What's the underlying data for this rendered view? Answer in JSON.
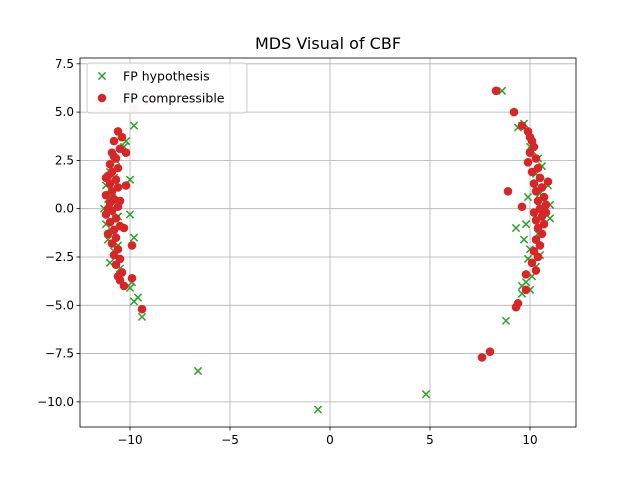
{
  "chart_data": {
    "type": "scatter",
    "title": "MDS Visual of CBF",
    "xlabel": "",
    "ylabel": "",
    "xlim": [
      -12.5,
      12.3
    ],
    "ylim": [
      -11.3,
      7.8
    ],
    "xticks": [
      -10,
      -5,
      0,
      5,
      10
    ],
    "yticks": [
      -10.0,
      -7.5,
      -5.0,
      -2.5,
      0.0,
      2.5,
      5.0,
      7.5
    ],
    "xtick_labels": [
      "−10",
      "−5",
      "0",
      "5",
      "10"
    ],
    "ytick_labels": [
      "−10.0",
      "−7.5",
      "−5.0",
      "−2.5",
      "0.0",
      "2.5",
      "5.0",
      "7.5"
    ],
    "grid": true,
    "legend_position": "top-left",
    "series": [
      {
        "name": "FP hypothesis",
        "marker": "x",
        "color": "#2ca02c",
        "points": [
          [
            -11.0,
            1.9
          ],
          [
            -10.8,
            1.6
          ],
          [
            -11.2,
            1.2
          ],
          [
            -10.9,
            0.9
          ],
          [
            -11.1,
            0.5
          ],
          [
            -10.7,
            0.2
          ],
          [
            -11.0,
            -0.2
          ],
          [
            -10.6,
            -0.4
          ],
          [
            -11.2,
            -0.8
          ],
          [
            -10.9,
            -1.2
          ],
          [
            -11.1,
            -1.6
          ],
          [
            -10.6,
            -1.9
          ],
          [
            -10.8,
            -2.2
          ],
          [
            -11.0,
            -2.8
          ],
          [
            -10.5,
            -3.1
          ],
          [
            -10.0,
            1.5
          ],
          [
            -10.0,
            -0.3
          ],
          [
            -10.3,
            3.2
          ],
          [
            -10.2,
            3.5
          ],
          [
            -9.8,
            4.3
          ],
          [
            -10.0,
            -4.1
          ],
          [
            -9.8,
            -4.8
          ],
          [
            -9.6,
            -4.6
          ],
          [
            -9.4,
            -5.6
          ],
          [
            -9.8,
            -1.5
          ],
          [
            -9.9,
            -3.8
          ],
          [
            -11.3,
            0.0
          ],
          [
            -10.7,
            2.5
          ],
          [
            -6.6,
            -8.4
          ],
          [
            -0.6,
            -10.4
          ],
          [
            4.8,
            -9.6
          ],
          [
            8.6,
            6.1
          ],
          [
            9.4,
            4.2
          ],
          [
            9.7,
            4.4
          ],
          [
            9.6,
            4.3
          ],
          [
            10.0,
            3.2
          ],
          [
            10.1,
            3.0
          ],
          [
            10.4,
            2.6
          ],
          [
            10.6,
            2.2
          ],
          [
            10.3,
            1.8
          ],
          [
            10.9,
            1.2
          ],
          [
            10.5,
            0.8
          ],
          [
            9.9,
            0.6
          ],
          [
            11.0,
            0.2
          ],
          [
            10.6,
            -0.3
          ],
          [
            11.0,
            -0.5
          ],
          [
            9.8,
            -0.8
          ],
          [
            9.3,
            -1.0
          ],
          [
            10.4,
            -1.3
          ],
          [
            9.7,
            -1.6
          ],
          [
            10.0,
            -2.1
          ],
          [
            10.5,
            -2.4
          ],
          [
            9.9,
            -2.6
          ],
          [
            10.3,
            -3.0
          ],
          [
            10.1,
            -3.5
          ],
          [
            9.8,
            -3.8
          ],
          [
            9.6,
            -4.0
          ],
          [
            10.0,
            -4.2
          ],
          [
            8.8,
            -5.8
          ],
          [
            9.6,
            -4.4
          ]
        ]
      },
      {
        "name": "FP compressible",
        "marker": "o",
        "color": "#d62728",
        "points": [
          [
            -10.6,
            4.0
          ],
          [
            -10.4,
            3.7
          ],
          [
            -10.8,
            3.5
          ],
          [
            -10.5,
            3.1
          ],
          [
            -10.9,
            2.9
          ],
          [
            -10.7,
            2.6
          ],
          [
            -11.0,
            2.3
          ],
          [
            -10.6,
            2.1
          ],
          [
            -10.9,
            1.9
          ],
          [
            -11.1,
            1.7
          ],
          [
            -10.7,
            1.5
          ],
          [
            -11.0,
            1.3
          ],
          [
            -10.6,
            1.1
          ],
          [
            -10.9,
            0.9
          ],
          [
            -11.2,
            0.7
          ],
          [
            -10.8,
            0.5
          ],
          [
            -11.0,
            0.3
          ],
          [
            -10.6,
            0.1
          ],
          [
            -10.9,
            -0.1
          ],
          [
            -11.2,
            -0.3
          ],
          [
            -10.7,
            -0.5
          ],
          [
            -11.0,
            -0.7
          ],
          [
            -10.5,
            -0.9
          ],
          [
            -10.8,
            -1.1
          ],
          [
            -11.1,
            -1.3
          ],
          [
            -10.7,
            -1.5
          ],
          [
            -10.9,
            -1.8
          ],
          [
            -10.6,
            -2.1
          ],
          [
            -10.8,
            -2.4
          ],
          [
            -10.5,
            -2.6
          ],
          [
            -10.7,
            -2.9
          ],
          [
            -10.4,
            -3.3
          ],
          [
            -10.5,
            -3.7
          ],
          [
            -10.3,
            -4.0
          ],
          [
            -10.6,
            -3.5
          ],
          [
            -9.9,
            -1.9
          ],
          [
            -9.9,
            -3.6
          ],
          [
            -10.3,
            -1.0
          ],
          [
            -9.4,
            -5.2
          ],
          [
            -11.2,
            1.6
          ],
          [
            -10.2,
            2.9
          ],
          [
            -10.2,
            1.2
          ],
          [
            -11.1,
            0.0
          ],
          [
            -10.8,
            2.7
          ],
          [
            -10.5,
            0.4
          ],
          [
            8.3,
            6.1
          ],
          [
            9.2,
            5.0
          ],
          [
            9.6,
            4.3
          ],
          [
            9.9,
            4.0
          ],
          [
            10.0,
            3.7
          ],
          [
            10.2,
            3.2
          ],
          [
            10.0,
            2.9
          ],
          [
            10.3,
            2.6
          ],
          [
            9.9,
            2.4
          ],
          [
            10.4,
            2.1
          ],
          [
            10.1,
            1.9
          ],
          [
            10.5,
            1.6
          ],
          [
            10.2,
            1.3
          ],
          [
            10.6,
            1.1
          ],
          [
            10.3,
            0.9
          ],
          [
            10.7,
            0.6
          ],
          [
            10.4,
            0.4
          ],
          [
            10.8,
            0.2
          ],
          [
            10.5,
            0.0
          ],
          [
            10.2,
            -0.2
          ],
          [
            10.6,
            -0.4
          ],
          [
            10.3,
            -0.6
          ],
          [
            10.7,
            -0.8
          ],
          [
            10.4,
            -1.0
          ],
          [
            10.6,
            -1.3
          ],
          [
            10.3,
            -1.6
          ],
          [
            10.5,
            -1.9
          ],
          [
            10.2,
            -2.2
          ],
          [
            10.4,
            -2.5
          ],
          [
            10.1,
            -2.8
          ],
          [
            10.3,
            -3.2
          ],
          [
            9.8,
            -3.4
          ],
          [
            9.8,
            -4.2
          ],
          [
            9.4,
            -4.9
          ],
          [
            9.3,
            -5.1
          ],
          [
            8.0,
            -7.4
          ],
          [
            7.6,
            -7.7
          ],
          [
            8.9,
            0.9
          ],
          [
            9.6,
            0.1
          ],
          [
            10.8,
            -0.2
          ],
          [
            10.1,
            3.5
          ],
          [
            10.9,
            1.4
          ]
        ]
      },
      {
        "name": "",
        "marker": "o",
        "color": "#f8c8c8",
        "points": [
          [
            -9.8,
            5.2
          ],
          [
            -9.2,
            5.6
          ]
        ]
      }
    ]
  }
}
